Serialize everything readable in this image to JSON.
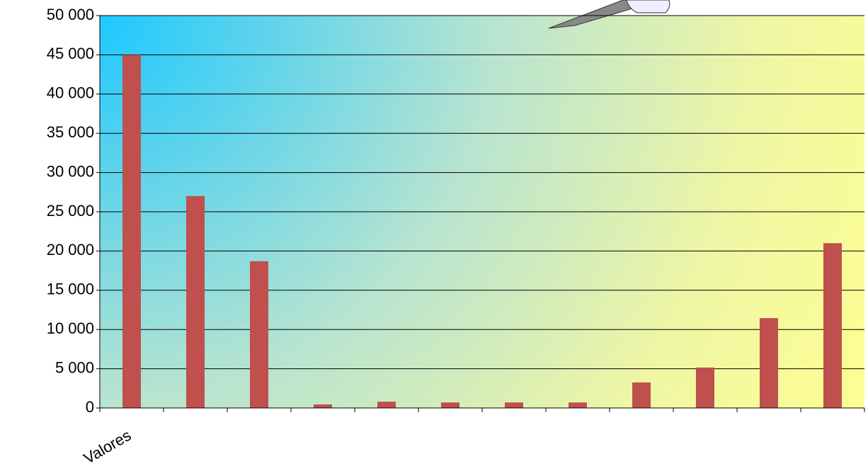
{
  "chart_data": {
    "type": "bar",
    "categories": [
      "Valores",
      null,
      null,
      null,
      null,
      null,
      null,
      null,
      null,
      null,
      null,
      null
    ],
    "values": [
      45000,
      27000,
      18700,
      450,
      800,
      700,
      700,
      700,
      3250,
      5150,
      11450,
      21000
    ],
    "color": "#c0504d",
    "ylim": [
      0,
      50000
    ],
    "yticks": [
      0,
      {
        "value": 5000,
        "label": "5 000"
      },
      {
        "value": 10000,
        "label": "10 000"
      },
      {
        "value": 15000,
        "label": "15 000"
      },
      {
        "value": 20000,
        "label": "20 000"
      },
      {
        "value": 25000,
        "label": "25 000"
      },
      {
        "value": 30000,
        "label": "30 000"
      },
      {
        "value": 35000,
        "label": "35 000"
      },
      {
        "value": 40000,
        "label": "40 000"
      },
      {
        "value": 45000,
        "label": "45 000"
      },
      {
        "value": 50000,
        "label": "50 000"
      }
    ],
    "grid": true
  }
}
